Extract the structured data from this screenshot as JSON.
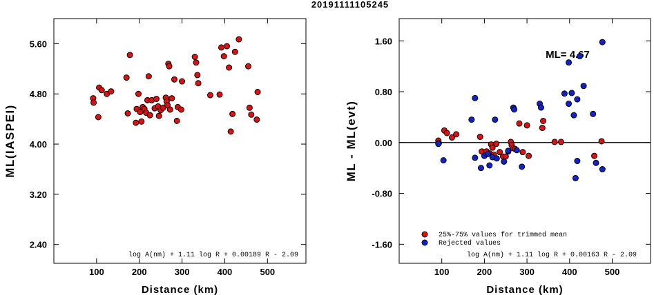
{
  "figure_title": "20191111105245",
  "chart_data": [
    {
      "type": "scatter",
      "xlabel": "Distance (km)",
      "ylabel": "ML(IASPEI)",
      "xlim": [
        0,
        590
      ],
      "ylim": [
        2.1,
        6.0
      ],
      "xticks": [
        100,
        200,
        300,
        400,
        500
      ],
      "yticks": [
        2.4,
        3.2,
        4.0,
        4.8,
        5.6
      ],
      "ytick_labels": [
        "2.40",
        "3.20",
        "4.00",
        "4.80",
        "5.60"
      ],
      "formula": "log A(nm) + 1.11 log R + 0.00189 R - 2.09",
      "series": [
        {
          "color": "#dd1111",
          "points": [
            [
              92,
              4.73
            ],
            [
              93,
              4.66
            ],
            [
              104,
              4.43
            ],
            [
              106,
              4.9
            ],
            [
              112,
              4.86
            ],
            [
              124,
              4.8
            ],
            [
              134,
              4.84
            ],
            [
              170,
              5.06
            ],
            [
              173,
              4.49
            ],
            [
              178,
              5.42
            ],
            [
              192,
              4.34
            ],
            [
              194,
              4.56
            ],
            [
              198,
              4.8
            ],
            [
              202,
              4.51
            ],
            [
              205,
              4.36
            ],
            [
              208,
              4.59
            ],
            [
              212,
              4.56
            ],
            [
              216,
              4.5
            ],
            [
              219,
              4.7
            ],
            [
              222,
              5.08
            ],
            [
              225,
              4.46
            ],
            [
              229,
              4.7
            ],
            [
              236,
              4.57
            ],
            [
              240,
              4.72
            ],
            [
              244,
              4.6
            ],
            [
              246,
              4.45
            ],
            [
              250,
              4.54
            ],
            [
              256,
              4.58
            ],
            [
              262,
              4.74
            ],
            [
              264,
              4.68
            ],
            [
              266,
              4.62
            ],
            [
              268,
              5.28
            ],
            [
              270,
              5.24
            ],
            [
              272,
              4.55
            ],
            [
              276,
              4.73
            ],
            [
              282,
              5.03
            ],
            [
              288,
              4.37
            ],
            [
              290,
              4.59
            ],
            [
              298,
              4.55
            ],
            [
              300,
              5.0
            ],
            [
              330,
              5.39
            ],
            [
              333,
              5.3
            ],
            [
              336,
              5.1
            ],
            [
              338,
              4.97
            ],
            [
              366,
              4.78
            ],
            [
              388,
              4.79
            ],
            [
              392,
              5.54
            ],
            [
              398,
              5.4
            ],
            [
              405,
              5.56
            ],
            [
              410,
              5.22
            ],
            [
              414,
              4.2
            ],
            [
              418,
              4.48
            ],
            [
              424,
              5.47
            ],
            [
              433,
              5.67
            ],
            [
              455,
              5.24
            ],
            [
              458,
              4.58
            ],
            [
              462,
              4.47
            ],
            [
              475,
              4.39
            ],
            [
              477,
              4.83
            ]
          ]
        }
      ]
    },
    {
      "type": "scatter",
      "xlabel": "Distance (km)",
      "ylabel": "ML - ML(evt)",
      "xlim": [
        0,
        590
      ],
      "ylim": [
        -1.9,
        1.95
      ],
      "xticks": [
        100,
        200,
        300,
        400,
        500
      ],
      "yticks": [
        -1.6,
        -0.8,
        0.0,
        0.8,
        1.6
      ],
      "ytick_labels": [
        "-1.60",
        "-0.80",
        "0.00",
        "0.80",
        "1.60"
      ],
      "annotation": "ML= 4.67",
      "formula": "log A(nm) + 1.11 log R + 0.00163 R - 2.09",
      "legend": [
        "25%-75% values for trimmed mean",
        "Rejected values"
      ],
      "series": [
        {
          "name": "25%-75% values for trimmed mean",
          "color": "#dd1111",
          "points": [
            [
              92,
              0.03
            ],
            [
              93,
              -0.01
            ],
            [
              106,
              0.19
            ],
            [
              112,
              0.15
            ],
            [
              124,
              0.08
            ],
            [
              134,
              0.13
            ],
            [
              190,
              0.09
            ],
            [
              194,
              -0.14
            ],
            [
              205,
              -0.14
            ],
            [
              212,
              -0.17
            ],
            [
              216,
              -0.03
            ],
            [
              219,
              -0.08
            ],
            [
              222,
              -0.19
            ],
            [
              228,
              -0.02
            ],
            [
              236,
              -0.15
            ],
            [
              244,
              -0.22
            ],
            [
              250,
              -0.22
            ],
            [
              256,
              -0.14
            ],
            [
              262,
              0.01
            ],
            [
              264,
              -0.04
            ],
            [
              268,
              -0.09
            ],
            [
              272,
              -0.1
            ],
            [
              282,
              0.3
            ],
            [
              290,
              -0.15
            ],
            [
              300,
              0.27
            ],
            [
              304,
              -0.21
            ],
            [
              336,
              0.23
            ],
            [
              338,
              0.34
            ],
            [
              365,
              0.01
            ],
            [
              380,
              0.01
            ],
            [
              458,
              -0.21
            ],
            [
              475,
              0.02
            ]
          ]
        },
        {
          "name": "Rejected values",
          "color": "#1122cc",
          "points": [
            [
              92,
              -0.02
            ],
            [
              104,
              -0.28
            ],
            [
              170,
              0.36
            ],
            [
              178,
              0.7
            ],
            [
              178,
              -0.24
            ],
            [
              192,
              -0.4
            ],
            [
              200,
              -0.21
            ],
            [
              208,
              -0.18
            ],
            [
              212,
              -0.36
            ],
            [
              219,
              -0.23
            ],
            [
              225,
              0.36
            ],
            [
              229,
              -0.25
            ],
            [
              246,
              -0.3
            ],
            [
              256,
              -0.13
            ],
            [
              268,
              0.55
            ],
            [
              270,
              0.52
            ],
            [
              276,
              -0.12
            ],
            [
              288,
              -0.38
            ],
            [
              330,
              0.61
            ],
            [
              333,
              0.55
            ],
            [
              388,
              0.77
            ],
            [
              398,
              1.26
            ],
            [
              398,
              0.61
            ],
            [
              405,
              0.78
            ],
            [
              410,
              0.43
            ],
            [
              414,
              -0.56
            ],
            [
              418,
              -0.29
            ],
            [
              424,
              1.36
            ],
            [
              433,
              0.89
            ],
            [
              418,
              0.68
            ],
            [
              455,
              0.45
            ],
            [
              462,
              -0.32
            ],
            [
              477,
              -0.42
            ],
            [
              477,
              1.58
            ]
          ]
        }
      ]
    }
  ]
}
